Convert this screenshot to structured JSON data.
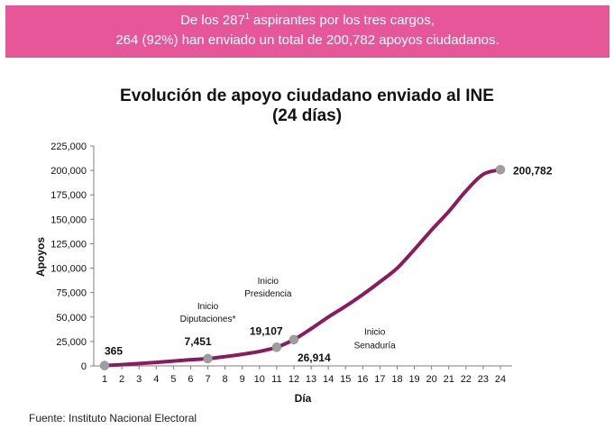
{
  "banner": {
    "line1_prefix": "De los 287",
    "line1_sup": "1",
    "line1_suffix": " aspirantes por los tres cargos,",
    "line2": "264 (92%) han enviado un total de 200,782 apoyos ciudadanos.",
    "color": "#e8569a"
  },
  "source": "Fuente: Instituto Nacional Electoral",
  "chart_data": {
    "type": "line",
    "title": "Evolución de apoyo ciudadano enviado al INE",
    "subtitle": "(24 días)",
    "xlabel": "Día",
    "ylabel": "Apoyos",
    "xlim": [
      1,
      24
    ],
    "ylim": [
      0,
      225000
    ],
    "x_ticks": [
      1,
      2,
      3,
      4,
      5,
      6,
      7,
      8,
      9,
      10,
      11,
      12,
      13,
      14,
      15,
      16,
      17,
      18,
      19,
      20,
      21,
      22,
      23,
      24
    ],
    "y_ticks": [
      0,
      25000,
      50000,
      75000,
      100000,
      125000,
      150000,
      175000,
      200000,
      225000
    ],
    "y_tick_labels": [
      "0",
      "25,000",
      "50,000",
      "75,000",
      "100,000",
      "125,000",
      "150,000",
      "175,000",
      "200,000",
      "225,000"
    ],
    "grid": false,
    "line_color": "#8b1a5e",
    "marker_color": "#9e9e9e",
    "series": [
      {
        "x": [
          1,
          2,
          3,
          4,
          5,
          6,
          7,
          8,
          9,
          10,
          11,
          12,
          13,
          14,
          15,
          16,
          17,
          18,
          19,
          20,
          21,
          22,
          23,
          24
        ],
        "y": [
          365,
          1300,
          2400,
          3600,
          5000,
          6300,
          7451,
          9500,
          11900,
          14800,
          19107,
          26914,
          38000,
          50000,
          61000,
          73000,
          86000,
          100000,
          119000,
          139000,
          158000,
          179000,
          196000,
          200782
        ]
      }
    ],
    "markers": [
      {
        "x": 1,
        "y": 365,
        "label": "365"
      },
      {
        "x": 7,
        "y": 7451,
        "label": "7,451"
      },
      {
        "x": 11,
        "y": 19107,
        "label": "19,107"
      },
      {
        "x": 12,
        "y": 26914,
        "label": "26,914"
      },
      {
        "x": 24,
        "y": 200782,
        "label": "200,782"
      }
    ],
    "annotations": [
      {
        "text": "Inicio",
        "x": 7,
        "y": 58000
      },
      {
        "text": "Diputaciones*",
        "x": 7,
        "y": 45000
      },
      {
        "text": "Inicio",
        "x": 10.5,
        "y": 84000
      },
      {
        "text": "Presidencia",
        "x": 10.5,
        "y": 71000
      },
      {
        "text": "Inicio",
        "x": 16.7,
        "y": 32000
      },
      {
        "text": "Senaduría",
        "x": 16.7,
        "y": 18000
      }
    ]
  }
}
